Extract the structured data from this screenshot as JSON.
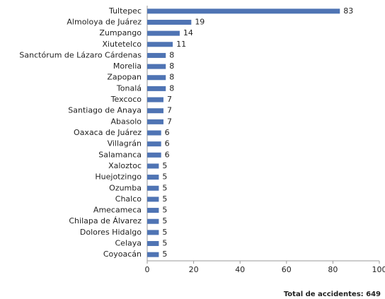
{
  "chart_data": {
    "type": "bar",
    "orientation": "horizontal",
    "categories": [
      "Tultepec",
      "Almoloya de Juárez",
      "Zumpango",
      "Xiutetelco",
      "Sanctórum de Lázaro Cárdenas",
      "Morelia",
      "Zapopan",
      "Tonalá",
      "Texcoco",
      "Santiago de Anaya",
      "Abasolo",
      "Oaxaca de Juárez",
      "Villagrán",
      "Salamanca",
      "Xaloztoc",
      "Huejotzingo",
      "Ozumba",
      "Chalco",
      "Amecameca",
      "Chilapa de Álvarez",
      "Dolores Hidalgo",
      "Celaya",
      "Coyoacán"
    ],
    "values": [
      83,
      19,
      14,
      11,
      8,
      8,
      8,
      8,
      7,
      7,
      7,
      6,
      6,
      6,
      5,
      5,
      5,
      5,
      5,
      5,
      5,
      5,
      5
    ],
    "color": "#4f74b4",
    "xlim": [
      0,
      100
    ],
    "xticks": [
      0,
      20,
      40,
      60,
      80,
      100
    ],
    "grid": false,
    "annotation": "Total de accidentes: 649"
  }
}
